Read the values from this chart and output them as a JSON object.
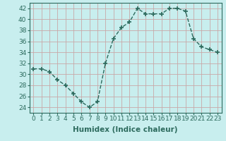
{
  "x": [
    0,
    1,
    2,
    3,
    4,
    5,
    6,
    7,
    8,
    9,
    10,
    11,
    12,
    13,
    14,
    15,
    16,
    17,
    18,
    19,
    20,
    21,
    22,
    23
  ],
  "y": [
    31,
    31,
    30.5,
    29,
    28,
    26.5,
    25,
    24,
    25,
    32,
    36.5,
    38.5,
    39.5,
    42,
    41,
    41,
    41,
    42,
    42,
    41.5,
    36.5,
    35,
    34.5,
    34
  ],
  "line_color": "#2d6b5e",
  "marker": "+",
  "marker_size": 4,
  "marker_linewidth": 1.2,
  "background_color": "#c8eeee",
  "grid_color": "#c8a8a8",
  "xlabel": "Humidex (Indice chaleur)",
  "ylim": [
    23,
    43
  ],
  "xlim": [
    -0.5,
    23.5
  ],
  "yticks": [
    24,
    26,
    28,
    30,
    32,
    34,
    36,
    38,
    40,
    42
  ],
  "xticks": [
    0,
    1,
    2,
    3,
    4,
    5,
    6,
    7,
    8,
    9,
    10,
    11,
    12,
    13,
    14,
    15,
    16,
    17,
    18,
    19,
    20,
    21,
    22,
    23
  ],
  "tick_label_fontsize": 6.5,
  "xlabel_fontsize": 7.5,
  "linewidth": 1.0,
  "linestyle": "--"
}
